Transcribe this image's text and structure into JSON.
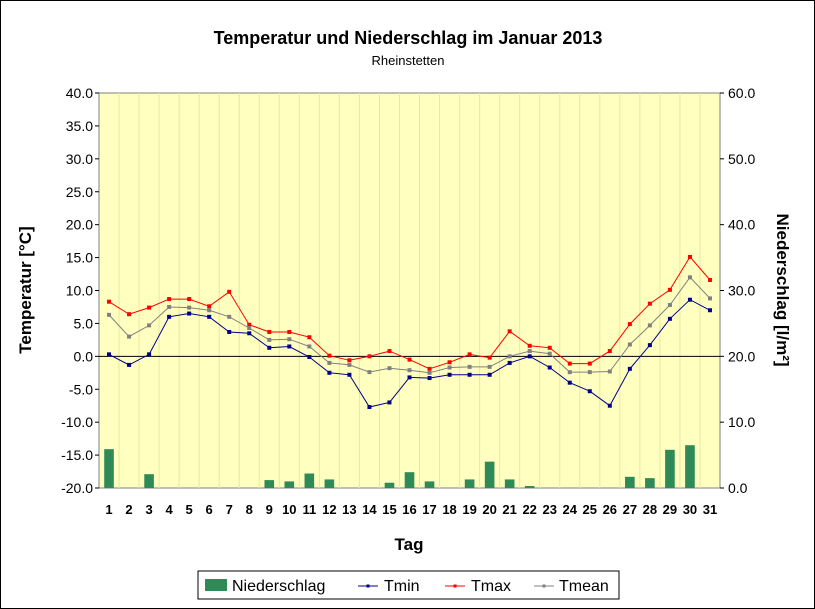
{
  "chart_data": {
    "type": "bar+line",
    "title": "Temperatur und Niederschlag im Januar 2013",
    "subtitle": "Rheinstetten",
    "xlabel": "Tag",
    "ylabel_left": "Temperatur [°C]",
    "ylabel_right": "Niederschlag [l/m²]",
    "ylim_left": [
      -20,
      40
    ],
    "ylim_right": [
      0,
      60
    ],
    "yticks_left": [
      "40.0",
      "35.0",
      "30.0",
      "25.0",
      "20.0",
      "15.0",
      "10.0",
      "5.0",
      "0.0",
      "-5.0",
      "-10.0",
      "-15.0",
      "-20.0"
    ],
    "yticks_right": [
      "60.0",
      "50.0",
      "40.0",
      "30.0",
      "20.0",
      "10.0",
      "0.0"
    ],
    "categories": [
      "1",
      "2",
      "3",
      "4",
      "5",
      "6",
      "7",
      "8",
      "9",
      "10",
      "11",
      "12",
      "13",
      "14",
      "15",
      "16",
      "17",
      "18",
      "19",
      "20",
      "21",
      "22",
      "23",
      "24",
      "25",
      "26",
      "27",
      "28",
      "29",
      "30",
      "31"
    ],
    "legend_position": "bottom",
    "grid": false,
    "series": [
      {
        "name": "Niederschlag",
        "kind": "bar",
        "axis": "right",
        "color": "#2e8b57",
        "values": [
          5.9,
          0,
          2.1,
          0,
          0,
          0,
          0,
          0,
          1.2,
          1.0,
          2.2,
          1.3,
          0,
          0,
          0.8,
          2.4,
          1.0,
          0,
          1.3,
          4.0,
          1.3,
          0.3,
          0,
          0,
          0,
          0,
          1.7,
          1.5,
          5.8,
          6.5,
          0
        ]
      },
      {
        "name": "Tmin",
        "kind": "line",
        "axis": "left",
        "color": "#00008b",
        "values": [
          0.3,
          -1.3,
          0.3,
          6.0,
          6.5,
          6.0,
          3.7,
          3.5,
          1.3,
          1.5,
          -0.1,
          -2.5,
          -2.8,
          -7.7,
          -7.0,
          -3.2,
          -3.3,
          -2.8,
          -2.8,
          -2.8,
          -1.0,
          0.0,
          -1.7,
          -4.0,
          -5.3,
          -7.5,
          -1.9,
          1.7,
          5.7,
          8.6,
          7.0
        ]
      },
      {
        "name": "Tmax",
        "kind": "line",
        "axis": "left",
        "color": "#ff0000",
        "values": [
          8.3,
          6.4,
          7.4,
          8.7,
          8.7,
          7.6,
          9.8,
          4.8,
          3.7,
          3.7,
          2.9,
          0.1,
          -0.6,
          0.0,
          0.8,
          -0.5,
          -1.9,
          -0.9,
          0.3,
          -0.2,
          3.8,
          1.6,
          1.3,
          -1.1,
          -1.1,
          0.8,
          4.9,
          8.0,
          10.1,
          15.1,
          11.6
        ]
      },
      {
        "name": "Tmean",
        "kind": "line",
        "axis": "left",
        "color": "#808080",
        "values": [
          6.3,
          3.0,
          4.7,
          7.5,
          7.4,
          7.0,
          6.0,
          4.3,
          2.5,
          2.6,
          1.5,
          -1.0,
          -1.3,
          -2.4,
          -1.8,
          -2.1,
          -2.5,
          -1.7,
          -1.6,
          -1.6,
          0.0,
          0.8,
          0.4,
          -2.4,
          -2.4,
          -2.3,
          1.8,
          4.7,
          7.8,
          12.0,
          8.8
        ]
      }
    ]
  }
}
